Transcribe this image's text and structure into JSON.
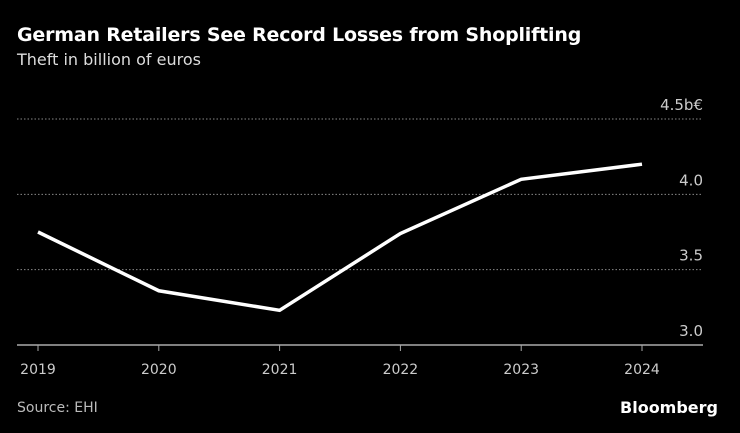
{
  "header": {
    "title": "German Retailers See Record Losses from Shoplifting",
    "subtitle": "Theft in billion of euros"
  },
  "footer": {
    "source": "Source: EHI",
    "logo": "Bloomberg"
  },
  "chart_data": {
    "type": "line",
    "title": "German Retailers See Record Losses from Shoplifting",
    "subtitle": "Theft in billion of euros",
    "categories": [
      "2019",
      "2020",
      "2021",
      "2022",
      "2023",
      "2024"
    ],
    "values": [
      3.75,
      3.36,
      3.23,
      3.74,
      4.1,
      4.2
    ],
    "ylim": [
      3.0,
      4.5
    ],
    "yticks": [
      3.0,
      3.5,
      4.0,
      4.5
    ],
    "ytick_labels": [
      "3.0",
      "3.5",
      "4.0",
      "4.5b€"
    ],
    "y_axis_side": "right",
    "grid": true,
    "line_color": "#ffffff",
    "background": "#000000"
  }
}
